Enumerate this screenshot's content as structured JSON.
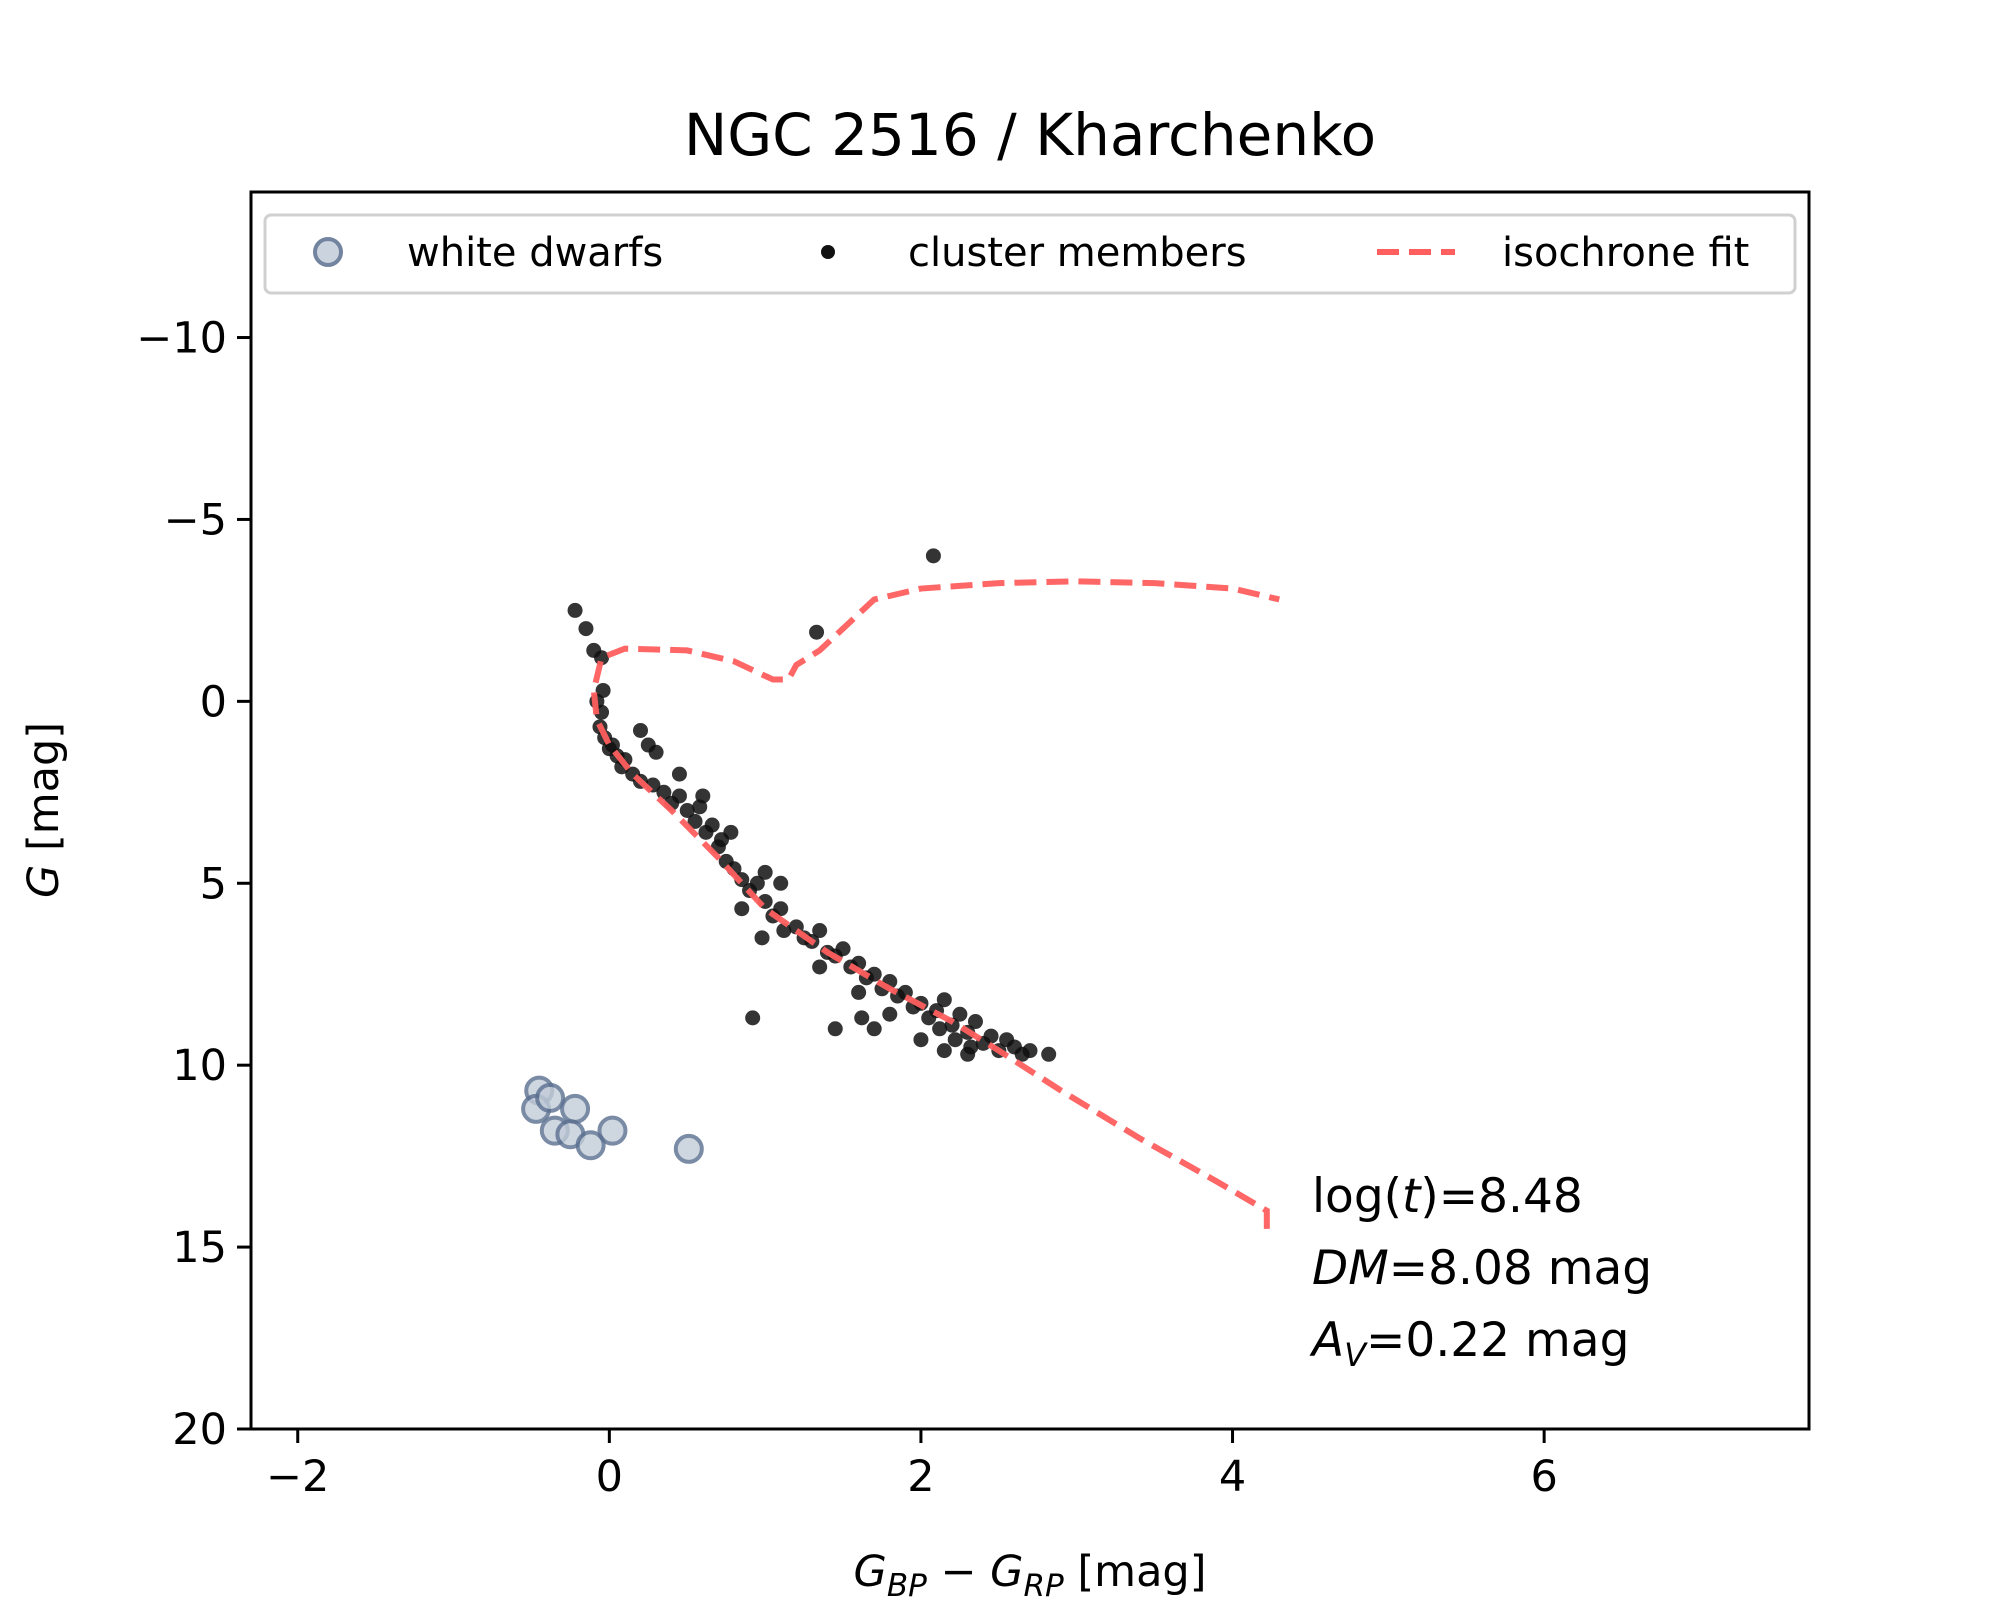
{
  "chart_data": {
    "type": "scatter",
    "title": "NGC 2516 / Kharchenko",
    "xlabel": {
      "main1": "G",
      "sub1": "BP",
      "op": " − ",
      "main2": "G",
      "sub2": "RP",
      "unit": " [mag]"
    },
    "ylabel": {
      "main": "G",
      "unit": " [mag]"
    },
    "xlim": [
      -2.3,
      7.7
    ],
    "ylim": [
      20,
      -14
    ],
    "y_inverted": true,
    "xticks": [
      -2,
      0,
      2,
      4,
      6
    ],
    "xtick_labels": [
      "−2",
      "0",
      "2",
      "4",
      "6"
    ],
    "yticks": [
      -10,
      -5,
      0,
      5,
      10,
      15,
      20
    ],
    "ytick_labels": [
      "−10",
      "−5",
      "0",
      "5",
      "10",
      "15",
      "20"
    ],
    "grid": false,
    "legend": {
      "placement": "top",
      "entries": [
        "white dwarfs",
        "cluster members",
        "isochrone fit"
      ]
    },
    "annotation": {
      "line1": {
        "pre": "log(",
        "var": "t",
        "post": ")=8.48"
      },
      "line2": {
        "var": "DM",
        "post": "=8.08 mag"
      },
      "line3": {
        "var": "A",
        "sub": "V",
        "post": "=0.22 mag"
      }
    },
    "colors": {
      "white_dwarf_fill": "#c3ccd9",
      "white_dwarf_edge": "#5a6f8f",
      "members": "#111111",
      "isochrone": "#ff5f5f"
    },
    "series": [
      {
        "name": "white dwarfs",
        "type": "scatter",
        "points": [
          [
            -0.45,
            10.7
          ],
          [
            -0.47,
            11.2
          ],
          [
            -0.38,
            10.9
          ],
          [
            -0.35,
            11.8
          ],
          [
            -0.22,
            11.2
          ],
          [
            -0.25,
            11.9
          ],
          [
            -0.12,
            12.2
          ],
          [
            0.02,
            11.8
          ],
          [
            0.51,
            12.3
          ]
        ]
      },
      {
        "name": "cluster members",
        "type": "scatter",
        "points": [
          [
            2.08,
            -4.0
          ],
          [
            -0.22,
            -2.5
          ],
          [
            -0.15,
            -2.0
          ],
          [
            -0.1,
            -1.4
          ],
          [
            -0.05,
            -1.2
          ],
          [
            1.33,
            -1.9
          ],
          [
            0.92,
            8.7
          ],
          [
            1.45,
            9.0
          ],
          [
            1.62,
            8.7
          ],
          [
            1.7,
            9.0
          ],
          [
            1.8,
            8.6
          ],
          [
            0.98,
            6.5
          ],
          [
            2.82,
            9.7
          ],
          [
            -0.08,
            0.0
          ],
          [
            -0.05,
            0.3
          ],
          [
            -0.06,
            0.7
          ],
          [
            -0.03,
            1.0
          ],
          [
            0.0,
            1.3
          ],
          [
            0.05,
            1.5
          ],
          [
            0.02,
            1.2
          ],
          [
            0.08,
            1.8
          ],
          [
            0.1,
            1.6
          ],
          [
            0.15,
            2.0
          ],
          [
            0.2,
            2.2
          ],
          [
            0.25,
            1.2
          ],
          [
            0.3,
            1.4
          ],
          [
            0.28,
            2.3
          ],
          [
            0.35,
            2.5
          ],
          [
            0.4,
            2.8
          ],
          [
            0.45,
            2.6
          ],
          [
            0.5,
            3.0
          ],
          [
            0.55,
            3.3
          ],
          [
            0.58,
            2.9
          ],
          [
            0.62,
            3.6
          ],
          [
            0.66,
            3.4
          ],
          [
            0.7,
            4.0
          ],
          [
            0.72,
            3.8
          ],
          [
            0.75,
            4.4
          ],
          [
            0.8,
            4.6
          ],
          [
            0.78,
            3.6
          ],
          [
            0.85,
            4.9
          ],
          [
            0.9,
            5.2
          ],
          [
            0.95,
            5.0
          ],
          [
            1.0,
            5.5
          ],
          [
            1.05,
            5.9
          ],
          [
            1.1,
            5.7
          ],
          [
            1.12,
            6.3
          ],
          [
            1.2,
            6.2
          ],
          [
            1.25,
            6.5
          ],
          [
            1.3,
            6.6
          ],
          [
            1.35,
            6.3
          ],
          [
            1.4,
            6.9
          ],
          [
            1.45,
            7.0
          ],
          [
            1.5,
            6.8
          ],
          [
            1.55,
            7.3
          ],
          [
            1.6,
            7.2
          ],
          [
            1.65,
            7.6
          ],
          [
            1.7,
            7.5
          ],
          [
            1.75,
            7.9
          ],
          [
            1.8,
            7.7
          ],
          [
            1.85,
            8.1
          ],
          [
            1.9,
            8.0
          ],
          [
            1.95,
            8.4
          ],
          [
            2.0,
            8.3
          ],
          [
            2.05,
            8.7
          ],
          [
            2.1,
            8.5
          ],
          [
            2.12,
            9.0
          ],
          [
            2.15,
            8.2
          ],
          [
            2.2,
            8.9
          ],
          [
            2.22,
            9.3
          ],
          [
            2.25,
            8.6
          ],
          [
            2.3,
            9.1
          ],
          [
            2.32,
            9.5
          ],
          [
            2.35,
            8.8
          ],
          [
            2.4,
            9.4
          ],
          [
            2.45,
            9.2
          ],
          [
            2.5,
            9.6
          ],
          [
            2.55,
            9.3
          ],
          [
            2.6,
            9.5
          ],
          [
            2.65,
            9.7
          ],
          [
            2.7,
            9.6
          ],
          [
            2.3,
            9.7
          ],
          [
            2.15,
            9.6
          ],
          [
            2.0,
            9.3
          ],
          [
            1.6,
            8.0
          ],
          [
            1.35,
            7.3
          ],
          [
            0.6,
            2.6
          ],
          [
            0.45,
            2.0
          ],
          [
            1.0,
            4.7
          ],
          [
            1.1,
            5.0
          ],
          [
            0.85,
            5.7
          ],
          [
            0.2,
            0.8
          ],
          [
            -0.04,
            -0.3
          ]
        ]
      },
      {
        "name": "isochrone fit",
        "type": "line",
        "points": [
          [
            4.22,
            14.5
          ],
          [
            4.22,
            14.0
          ],
          [
            3.9,
            13.2
          ],
          [
            3.4,
            12.0
          ],
          [
            2.9,
            10.7
          ],
          [
            2.5,
            9.6
          ],
          [
            2.2,
            8.8
          ],
          [
            1.8,
            7.9
          ],
          [
            1.4,
            6.9
          ],
          [
            1.0,
            5.7
          ],
          [
            0.7,
            4.3
          ],
          [
            0.4,
            3.0
          ],
          [
            0.15,
            2.0
          ],
          [
            0.0,
            1.2
          ],
          [
            -0.08,
            0.5
          ],
          [
            -0.1,
            -0.3
          ],
          [
            -0.05,
            -1.2
          ],
          [
            0.1,
            -1.45
          ],
          [
            0.5,
            -1.4
          ],
          [
            0.8,
            -1.1
          ],
          [
            1.05,
            -0.6
          ],
          [
            1.15,
            -0.6
          ],
          [
            1.2,
            -1.0
          ],
          [
            1.35,
            -1.4
          ],
          [
            1.5,
            -2.0
          ],
          [
            1.7,
            -2.8
          ],
          [
            2.0,
            -3.1
          ],
          [
            2.5,
            -3.25
          ],
          [
            3.0,
            -3.3
          ],
          [
            3.5,
            -3.25
          ],
          [
            4.0,
            -3.1
          ],
          [
            4.3,
            -2.8
          ]
        ]
      }
    ]
  }
}
